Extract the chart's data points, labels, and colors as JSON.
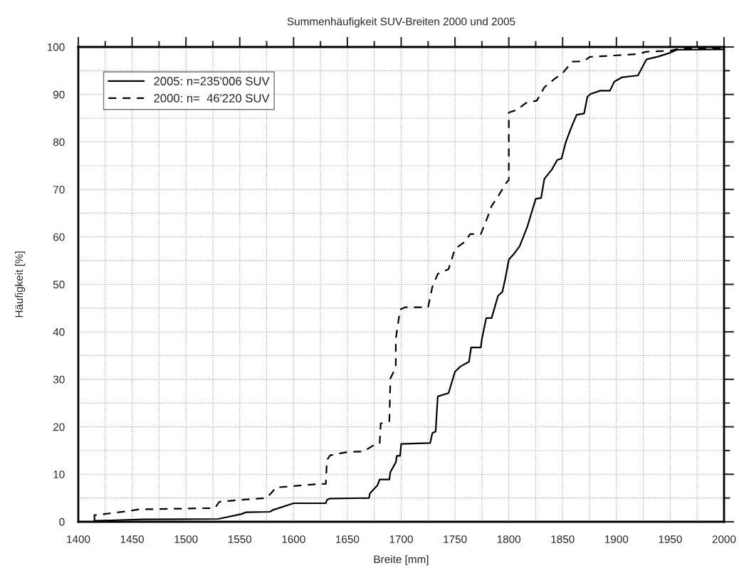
{
  "chart_data": {
    "type": "line",
    "title": "Summenhäufigkeit SUV-Breiten 2000 und 2005",
    "xlabel": "Breite [mm]",
    "ylabel": "Häufigkeit [%]",
    "xlim": [
      1400,
      2000
    ],
    "xticks": [
      1400,
      1450,
      1500,
      1550,
      1600,
      1650,
      1700,
      1750,
      1800,
      1850,
      1900,
      1950,
      2000
    ],
    "ylim": [
      0,
      100
    ],
    "yticks": [
      0,
      10,
      20,
      30,
      40,
      50,
      60,
      70,
      80,
      90,
      100
    ],
    "grid": true,
    "legend": "top left",
    "series": [
      {
        "name": "2005: n=235'006 SUV",
        "color": "#000000",
        "line_style": "solid",
        "x": [
          1415,
          1430,
          1460,
          1530,
          1551,
          1556,
          1578,
          1581,
          1600,
          1630,
          1631,
          1634,
          1670,
          1671,
          1678,
          1680,
          1689,
          1690,
          1695,
          1696,
          1699,
          1700,
          1727,
          1729,
          1732,
          1734,
          1744,
          1750,
          1755,
          1763,
          1765,
          1774,
          1775,
          1779,
          1784,
          1790,
          1794,
          1797,
          1800,
          1805,
          1810,
          1817,
          1821,
          1825,
          1830,
          1833,
          1840,
          1845,
          1849,
          1853,
          1858,
          1863,
          1870,
          1873,
          1876,
          1885,
          1894,
          1898,
          1905,
          1920,
          1928,
          1939,
          1949,
          1956,
          2000
        ],
        "values": [
          0.2,
          0.3,
          0.5,
          0.6,
          1.6,
          2.0,
          2.1,
          2.5,
          3.9,
          3.9,
          4.6,
          4.9,
          5.0,
          6.0,
          7.7,
          8.9,
          8.9,
          10.5,
          12.5,
          13.9,
          13.9,
          16.4,
          16.6,
          18.7,
          19.0,
          26.4,
          27.1,
          31.6,
          32.7,
          33.7,
          36.7,
          36.7,
          38.5,
          42.9,
          42.9,
          47.6,
          48.4,
          51.5,
          55.2,
          56.5,
          58.0,
          62.0,
          65.0,
          68.0,
          68.2,
          72.2,
          74.2,
          76.2,
          76.5,
          80.0,
          83.0,
          85.7,
          86.0,
          89.5,
          90.1,
          90.8,
          90.8,
          92.7,
          93.6,
          94.0,
          97.4,
          98.0,
          98.7,
          99.4,
          99.5
        ]
      },
      {
        "name": "2000: n=  46'220 SUV",
        "color": "#000000",
        "line_style": "dashed",
        "x": [
          1415,
          1415,
          1423,
          1448,
          1456,
          1527,
          1531,
          1549,
          1575,
          1581,
          1583,
          1620,
          1630,
          1631,
          1634,
          1650,
          1665,
          1675,
          1680,
          1681,
          1689,
          1690,
          1695,
          1695,
          1699,
          1704,
          1725,
          1729,
          1734,
          1744,
          1750,
          1760,
          1764,
          1774,
          1780,
          1784,
          1790,
          1797,
          1800,
          1800,
          1807,
          1816,
          1826,
          1833,
          1842,
          1850,
          1859,
          1870,
          1875,
          1919,
          1928,
          1950,
          1959,
          2000
        ],
        "values": [
          0.2,
          1.4,
          1.6,
          2.3,
          2.6,
          2.9,
          4.2,
          4.6,
          5.0,
          6.5,
          7.2,
          7.9,
          8.0,
          13.0,
          14.0,
          14.7,
          14.8,
          16.2,
          16.4,
          20.7,
          21.2,
          30.2,
          32.5,
          38.5,
          44.7,
          45.2,
          45.2,
          49.5,
          52.2,
          53.2,
          57.5,
          59.1,
          60.6,
          60.6,
          64.0,
          66.5,
          68.5,
          71.2,
          72.0,
          86.2,
          86.7,
          88.2,
          88.7,
          91.5,
          93.2,
          94.5,
          96.9,
          97.0,
          97.9,
          98.5,
          99.0,
          99.2,
          99.7,
          99.7
        ]
      }
    ]
  }
}
